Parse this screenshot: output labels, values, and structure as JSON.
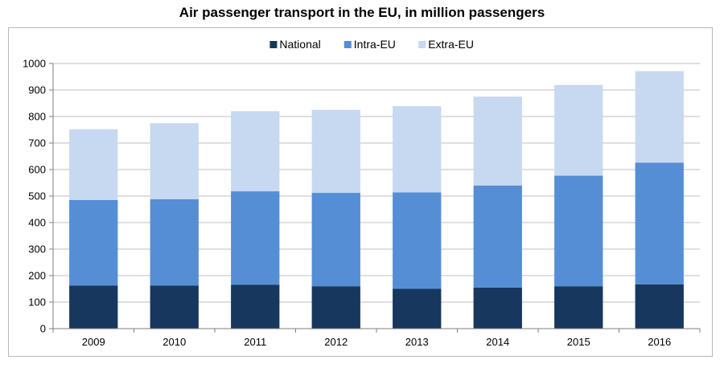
{
  "chart_data": {
    "type": "bar",
    "stacked": true,
    "title": "Air passenger transport in the EU, in million passengers",
    "categories": [
      "2009",
      "2010",
      "2011",
      "2012",
      "2013",
      "2014",
      "2015",
      "2016"
    ],
    "series": [
      {
        "name": "National",
        "color": "#17375e",
        "values": [
          163,
          163,
          166,
          160,
          150,
          155,
          160,
          167
        ]
      },
      {
        "name": "Intra-EU",
        "color": "#558ed5",
        "values": [
          322,
          325,
          352,
          352,
          364,
          385,
          417,
          459
        ]
      },
      {
        "name": "Extra-EU",
        "color": "#c6d9f0",
        "values": [
          267,
          287,
          302,
          313,
          325,
          335,
          342,
          345
        ]
      }
    ],
    "yticks": [
      "0",
      "100",
      "200",
      "300",
      "400",
      "500",
      "600",
      "700",
      "800",
      "900",
      "1000"
    ],
    "ylim": [
      0,
      1000
    ],
    "legend_position": "top",
    "grid": true
  }
}
